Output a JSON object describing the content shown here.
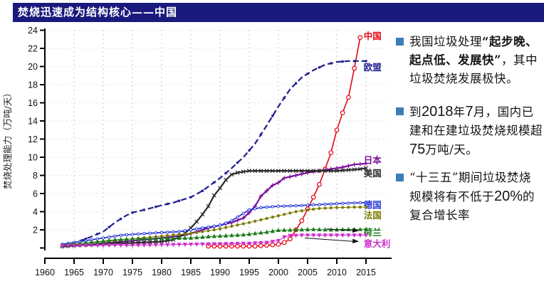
{
  "title_bar": {
    "title": "焚烧迅速成为结构核心——中国",
    "bg_color": "#1a1a7d"
  },
  "notes": {
    "bullet_color": "#3E7CB8",
    "items": [
      {
        "segments": [
          {
            "t": "我国垃圾处理",
            "s": "n"
          },
          {
            "t": "“起步晚、起点低、发展快”",
            "s": "b"
          },
          {
            "t": "，其中垃圾焚烧发展极快。",
            "s": "n"
          }
        ]
      },
      {
        "segments": [
          {
            "t": "到",
            "s": "n"
          },
          {
            "t": "2018",
            "s": "num"
          },
          {
            "t": "年",
            "s": "n"
          },
          {
            "t": "7",
            "s": "num"
          },
          {
            "t": "月，国内已建和在建垃圾焚烧规模超",
            "s": "n"
          },
          {
            "t": "75",
            "s": "num"
          },
          {
            "t": "万吨/天。",
            "s": "n"
          }
        ]
      },
      {
        "segments": [
          {
            "t": "“十三五”期间垃圾焚烧规模将有不低于",
            "s": "n"
          },
          {
            "t": "20%",
            "s": "num"
          },
          {
            "t": "的复合增长率",
            "s": "n"
          }
        ]
      }
    ]
  },
  "chart_data": {
    "type": "line",
    "title": "",
    "xlabel": "",
    "ylabel": "焚烧处理能力（万吨/天）",
    "xlim": [
      1958.5,
      2019
    ],
    "ylim": [
      0,
      24
    ],
    "x_ticks": [
      1960,
      1965,
      1970,
      1975,
      1980,
      1985,
      1990,
      1995,
      2000,
      2005,
      2010,
      2015
    ],
    "y_ticks": [
      0,
      2,
      4,
      6,
      8,
      10,
      12,
      14,
      16,
      18,
      20,
      22,
      24
    ],
    "y_tick_hide_zero_label": true,
    "grid": "light dashed vertical and horizontal",
    "legend_position": "right-of-lines",
    "series": [
      {
        "id": "china",
        "label": "中国",
        "color": "#E30613",
        "dash": "",
        "width": 1.6,
        "marker": "circle-open",
        "marker_step": 1,
        "label_pos": [
          2014.6,
          23.35
        ],
        "points": [
          [
            1988,
            0.2
          ],
          [
            1989,
            0.2
          ],
          [
            1990,
            0.2
          ],
          [
            1992,
            0.2
          ],
          [
            1994,
            0.2
          ],
          [
            1996,
            0.2
          ],
          [
            1998,
            0.3
          ],
          [
            2000,
            0.4
          ],
          [
            2001,
            0.6
          ],
          [
            2002,
            1.0
          ],
          [
            2003,
            2.0
          ],
          [
            2004,
            3.0
          ],
          [
            2005,
            4.3
          ],
          [
            2006,
            5.6
          ],
          [
            2007,
            7.0
          ],
          [
            2008,
            8.7
          ],
          [
            2009,
            10.5
          ],
          [
            2010,
            13.0
          ],
          [
            2011,
            14.9
          ],
          [
            2012,
            16.6
          ],
          [
            2013,
            19.8
          ],
          [
            2014,
            23.2
          ]
        ]
      },
      {
        "id": "eu",
        "label": "欧盟",
        "color": "#1F1F8F",
        "dash": "8,4",
        "width": 2.2,
        "marker": "square",
        "marker_step": 2,
        "label_pos": [
          2014.6,
          19.9
        ],
        "points": [
          [
            1963,
            0.4
          ],
          [
            1965,
            0.6
          ],
          [
            1967,
            1.0
          ],
          [
            1970,
            1.8
          ],
          [
            1972,
            2.8
          ],
          [
            1974,
            3.6
          ],
          [
            1975,
            3.9
          ],
          [
            1977,
            4.2
          ],
          [
            1980,
            4.7
          ],
          [
            1982,
            5.0
          ],
          [
            1985,
            5.6
          ],
          [
            1987,
            6.3
          ],
          [
            1990,
            7.7
          ],
          [
            1992,
            8.8
          ],
          [
            1994,
            10.0
          ],
          [
            1996,
            11.5
          ],
          [
            1998,
            13.5
          ],
          [
            2000,
            15.6
          ],
          [
            2002,
            17.5
          ],
          [
            2004,
            18.8
          ],
          [
            2006,
            19.6
          ],
          [
            2008,
            20.2
          ],
          [
            2010,
            20.5
          ],
          [
            2012,
            20.6
          ],
          [
            2015,
            20.6
          ]
        ]
      },
      {
        "id": "japan",
        "label": "日本",
        "color": "#7B0F9B",
        "dash": "",
        "width": 2.2,
        "marker": "plus",
        "marker_step": 1,
        "label_pos": [
          2014.6,
          9.65
        ],
        "points": [
          [
            1963,
            0.15
          ],
          [
            1966,
            0.3
          ],
          [
            1970,
            0.5
          ],
          [
            1975,
            0.8
          ],
          [
            1980,
            1.1
          ],
          [
            1984,
            1.4
          ],
          [
            1986,
            1.8
          ],
          [
            1988,
            2.2
          ],
          [
            1990,
            2.5
          ],
          [
            1992,
            2.8
          ],
          [
            1994,
            3.3
          ],
          [
            1995,
            3.9
          ],
          [
            1996,
            4.6
          ],
          [
            1997,
            5.7
          ],
          [
            1998,
            6.3
          ],
          [
            1999,
            6.9
          ],
          [
            2000,
            7.2
          ],
          [
            2001,
            7.7
          ],
          [
            2003,
            8.0
          ],
          [
            2005,
            8.3
          ],
          [
            2007,
            8.5
          ],
          [
            2009,
            8.7
          ],
          [
            2011,
            8.9
          ],
          [
            2013,
            9.2
          ],
          [
            2015,
            9.3
          ]
        ]
      },
      {
        "id": "usa",
        "label": "美国",
        "color": "#2b2b2b",
        "dash": "",
        "width": 2.2,
        "marker": "x",
        "marker_step": 1,
        "label_pos": [
          2014.6,
          8.2
        ],
        "points": [
          [
            1963,
            0.2
          ],
          [
            1967,
            0.35
          ],
          [
            1970,
            0.45
          ],
          [
            1975,
            0.55
          ],
          [
            1980,
            0.7
          ],
          [
            1982,
            0.9
          ],
          [
            1983,
            1.2
          ],
          [
            1984,
            1.6
          ],
          [
            1985,
            2.2
          ],
          [
            1986,
            2.9
          ],
          [
            1987,
            3.7
          ],
          [
            1988,
            4.6
          ],
          [
            1989,
            5.8
          ],
          [
            1990,
            6.6
          ],
          [
            1991,
            7.5
          ],
          [
            1992,
            8.1
          ],
          [
            1993,
            8.3
          ],
          [
            1995,
            8.5
          ],
          [
            2000,
            8.5
          ],
          [
            2005,
            8.5
          ],
          [
            2010,
            8.5
          ],
          [
            2012,
            8.6
          ],
          [
            2014,
            8.7
          ],
          [
            2015,
            8.8
          ]
        ]
      },
      {
        "id": "germany",
        "label": "德国",
        "color": "#2A3BD6",
        "dash": "",
        "width": 1.8,
        "marker": "ring-tiny",
        "marker_step": 1,
        "label_pos": [
          2014.6,
          4.7
        ],
        "points": [
          [
            1963,
            0.4
          ],
          [
            1965,
            0.6
          ],
          [
            1968,
            0.9
          ],
          [
            1970,
            1.1
          ],
          [
            1973,
            1.4
          ],
          [
            1975,
            1.5
          ],
          [
            1980,
            1.7
          ],
          [
            1983,
            1.8
          ],
          [
            1985,
            2.0
          ],
          [
            1988,
            2.3
          ],
          [
            1990,
            2.5
          ],
          [
            1992,
            3.0
          ],
          [
            1993,
            3.4
          ],
          [
            1995,
            4.2
          ],
          [
            1997,
            4.45
          ],
          [
            2000,
            4.6
          ],
          [
            2003,
            4.65
          ],
          [
            2006,
            4.75
          ],
          [
            2009,
            4.85
          ],
          [
            2012,
            4.95
          ],
          [
            2015,
            5.0
          ]
        ]
      },
      {
        "id": "france",
        "label": "法国",
        "color": "#7E7A00",
        "dash": "",
        "width": 1,
        "marker": "dot",
        "marker_step": 1,
        "label_pos": [
          2014.6,
          3.55
        ],
        "points": [
          [
            1963,
            0.3
          ],
          [
            1967,
            0.55
          ],
          [
            1970,
            0.7
          ],
          [
            1975,
            1.0
          ],
          [
            1980,
            1.3
          ],
          [
            1985,
            1.6
          ],
          [
            1988,
            1.9
          ],
          [
            1990,
            2.1
          ],
          [
            1992,
            2.4
          ],
          [
            1995,
            2.8
          ],
          [
            1997,
            3.1
          ],
          [
            1999,
            3.4
          ],
          [
            2001,
            3.7
          ],
          [
            2003,
            4.0
          ],
          [
            2005,
            4.2
          ],
          [
            2007,
            4.35
          ],
          [
            2010,
            4.45
          ],
          [
            2013,
            4.5
          ],
          [
            2015,
            4.5
          ]
        ]
      },
      {
        "id": "netherlands",
        "label": "荷兰",
        "color": "#1A7A1A",
        "dash": "",
        "width": 1,
        "marker": "tri-up",
        "marker_step": 1,
        "label_pos": [
          2014.6,
          1.7
        ],
        "arrow": {
          "from": [
            2008.3,
            2.1
          ],
          "to": [
            2013.8,
            1.9
          ]
        },
        "points": [
          [
            1963,
            0.3
          ],
          [
            1966,
            0.5
          ],
          [
            1969,
            0.7
          ],
          [
            1972,
            0.9
          ],
          [
            1975,
            1.0
          ],
          [
            1980,
            1.05
          ],
          [
            1985,
            1.1
          ],
          [
            1988,
            1.25
          ],
          [
            1991,
            1.35
          ],
          [
            1994,
            1.45
          ],
          [
            1996,
            1.6
          ],
          [
            1998,
            1.75
          ],
          [
            2000,
            1.95
          ],
          [
            2003,
            2.0
          ],
          [
            2006,
            2.05
          ],
          [
            2009,
            2.0
          ],
          [
            2012,
            2.05
          ],
          [
            2015,
            2.05
          ]
        ]
      },
      {
        "id": "italy",
        "label": "意大利",
        "color": "#CC2ECC",
        "dash": "",
        "width": 1,
        "marker": "tri-down",
        "marker_step": 1,
        "label_pos": [
          2014.6,
          0.45
        ],
        "arrow": {
          "from": [
            2004.5,
            1.1
          ],
          "to": [
            2013.8,
            0.72
          ]
        },
        "points": [
          [
            1963,
            0.25
          ],
          [
            1970,
            0.3
          ],
          [
            1975,
            0.3
          ],
          [
            1980,
            0.35
          ],
          [
            1985,
            0.4
          ],
          [
            1990,
            0.45
          ],
          [
            1995,
            0.5
          ],
          [
            1998,
            0.6
          ],
          [
            2000,
            0.8
          ],
          [
            2001,
            1.2
          ],
          [
            2002,
            1.35
          ],
          [
            2004,
            1.4
          ],
          [
            2007,
            1.4
          ],
          [
            2010,
            1.4
          ],
          [
            2013,
            1.4
          ],
          [
            2015,
            1.4
          ]
        ]
      }
    ]
  }
}
